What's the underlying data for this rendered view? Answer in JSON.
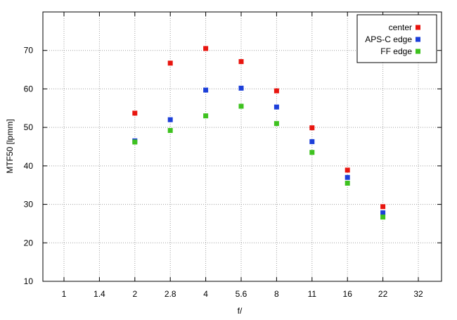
{
  "chart_data": {
    "type": "scatter",
    "title": "",
    "xlabel": "f/",
    "ylabel": "MTF50 [lpmm]",
    "x_categories": [
      "1",
      "1.4",
      "2",
      "2.8",
      "4",
      "5.6",
      "8",
      "11",
      "16",
      "22",
      "32"
    ],
    "ylim": [
      10,
      80
    ],
    "yticks": [
      10,
      20,
      30,
      40,
      50,
      60,
      70
    ],
    "grid": true,
    "legend_position": "top-right",
    "series": [
      {
        "name": "center",
        "color": "#e8150f",
        "points": [
          {
            "x": "2",
            "y": 53.7
          },
          {
            "x": "2.8",
            "y": 66.7
          },
          {
            "x": "4",
            "y": 70.5
          },
          {
            "x": "5.6",
            "y": 67.1
          },
          {
            "x": "8",
            "y": 59.5
          },
          {
            "x": "11",
            "y": 49.9
          },
          {
            "x": "16",
            "y": 38.9
          },
          {
            "x": "22",
            "y": 29.4
          }
        ]
      },
      {
        "name": "APS-C edge",
        "color": "#1c3fd9",
        "points": [
          {
            "x": "2",
            "y": 46.5
          },
          {
            "x": "2.8",
            "y": 52.0
          },
          {
            "x": "4",
            "y": 59.7
          },
          {
            "x": "5.6",
            "y": 60.2
          },
          {
            "x": "8",
            "y": 55.3
          },
          {
            "x": "11",
            "y": 46.3
          },
          {
            "x": "16",
            "y": 37.0
          },
          {
            "x": "22",
            "y": 27.8
          }
        ]
      },
      {
        "name": "FF edge",
        "color": "#3ec21f",
        "points": [
          {
            "x": "2",
            "y": 46.2
          },
          {
            "x": "2.8",
            "y": 49.2
          },
          {
            "x": "4",
            "y": 53.0
          },
          {
            "x": "5.6",
            "y": 55.5
          },
          {
            "x": "8",
            "y": 51.0
          },
          {
            "x": "11",
            "y": 43.5
          },
          {
            "x": "16",
            "y": 35.5
          },
          {
            "x": "22",
            "y": 26.7
          }
        ]
      }
    ]
  }
}
